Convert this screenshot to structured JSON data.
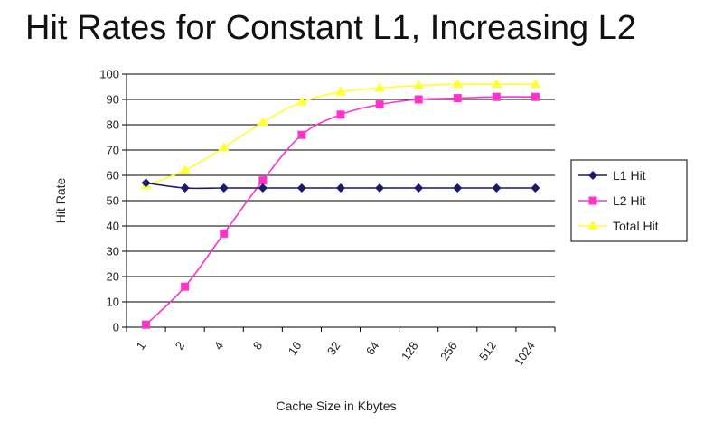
{
  "chart_data": {
    "type": "line",
    "title": "Hit Rates for Constant L1, Increasing L2",
    "xlabel": "Cache Size in Kbytes",
    "ylabel": "Hit Rate",
    "ylim": [
      0,
      100
    ],
    "yticks": [
      0,
      10,
      20,
      30,
      40,
      50,
      60,
      70,
      80,
      90,
      100
    ],
    "categories": [
      "1",
      "2",
      "4",
      "8",
      "16",
      "32",
      "64",
      "128",
      "256",
      "512",
      "1024"
    ],
    "grid": true,
    "legend_position": "right",
    "series": [
      {
        "name": "L1 Hit",
        "color": "#1a1a6e",
        "marker": "diamond",
        "values": [
          57,
          55,
          55,
          55,
          55,
          55,
          55,
          55,
          55,
          55,
          55
        ]
      },
      {
        "name": "L2 Hit",
        "color": "#ff33cc",
        "marker": "square",
        "values": [
          1,
          16,
          37,
          58,
          76,
          84,
          88,
          90,
          90.5,
          91,
          91
        ]
      },
      {
        "name": "Total Hit",
        "color": "#ffff33",
        "marker": "triangle",
        "values": [
          56,
          62,
          71,
          81,
          89,
          93,
          94.5,
          95.5,
          96,
          96,
          96
        ]
      }
    ]
  }
}
